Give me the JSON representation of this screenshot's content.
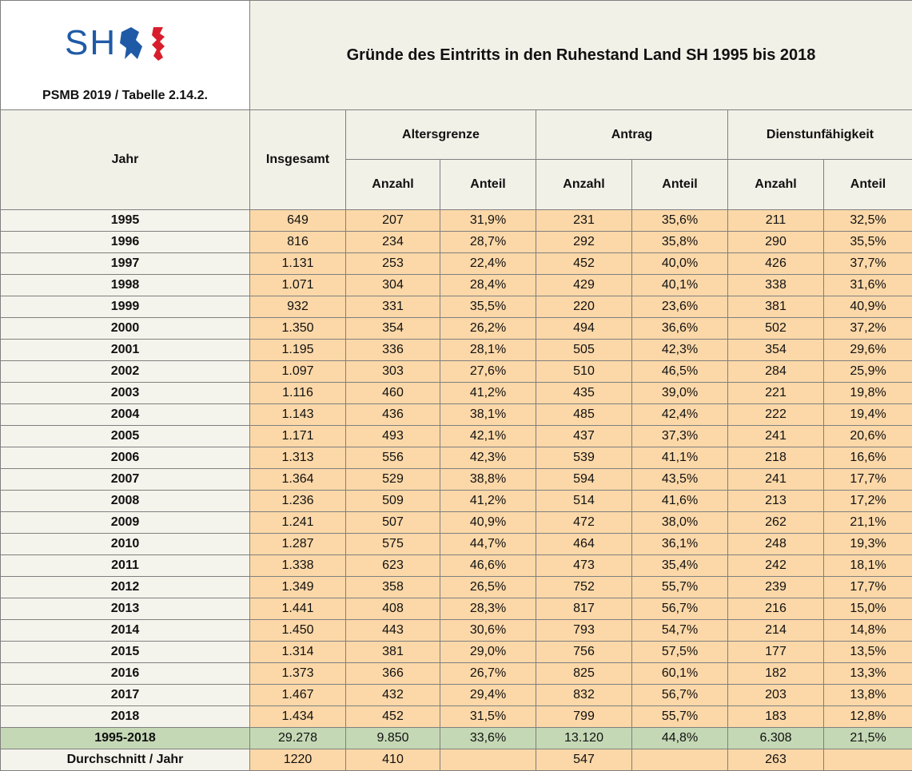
{
  "header": {
    "logo_text": "SH",
    "source": "PSMB 2019 / Tabelle 2.14.2.",
    "title": "Gründe des Eintritts in den Ruhestand Land SH 1995 bis 2018"
  },
  "table": {
    "columns": {
      "year": "Jahr",
      "total": "Insgesamt",
      "groups": [
        "Altersgrenze",
        "Antrag",
        "Dienstunfähigkeit"
      ],
      "sub": [
        "Anzahl",
        "Anteil",
        "Anzahl",
        "Anteil",
        "Anzahl",
        "Anteil"
      ]
    },
    "rows": [
      [
        "1995",
        "649",
        "207",
        "31,9%",
        "231",
        "35,6%",
        "211",
        "32,5%"
      ],
      [
        "1996",
        "816",
        "234",
        "28,7%",
        "292",
        "35,8%",
        "290",
        "35,5%"
      ],
      [
        "1997",
        "1.131",
        "253",
        "22,4%",
        "452",
        "40,0%",
        "426",
        "37,7%"
      ],
      [
        "1998",
        "1.071",
        "304",
        "28,4%",
        "429",
        "40,1%",
        "338",
        "31,6%"
      ],
      [
        "1999",
        "932",
        "331",
        "35,5%",
        "220",
        "23,6%",
        "381",
        "40,9%"
      ],
      [
        "2000",
        "1.350",
        "354",
        "26,2%",
        "494",
        "36,6%",
        "502",
        "37,2%"
      ],
      [
        "2001",
        "1.195",
        "336",
        "28,1%",
        "505",
        "42,3%",
        "354",
        "29,6%"
      ],
      [
        "2002",
        "1.097",
        "303",
        "27,6%",
        "510",
        "46,5%",
        "284",
        "25,9%"
      ],
      [
        "2003",
        "1.116",
        "460",
        "41,2%",
        "435",
        "39,0%",
        "221",
        "19,8%"
      ],
      [
        "2004",
        "1.143",
        "436",
        "38,1%",
        "485",
        "42,4%",
        "222",
        "19,4%"
      ],
      [
        "2005",
        "1.171",
        "493",
        "42,1%",
        "437",
        "37,3%",
        "241",
        "20,6%"
      ],
      [
        "2006",
        "1.313",
        "556",
        "42,3%",
        "539",
        "41,1%",
        "218",
        "16,6%"
      ],
      [
        "2007",
        "1.364",
        "529",
        "38,8%",
        "594",
        "43,5%",
        "241",
        "17,7%"
      ],
      [
        "2008",
        "1.236",
        "509",
        "41,2%",
        "514",
        "41,6%",
        "213",
        "17,2%"
      ],
      [
        "2009",
        "1.241",
        "507",
        "40,9%",
        "472",
        "38,0%",
        "262",
        "21,1%"
      ],
      [
        "2010",
        "1.287",
        "575",
        "44,7%",
        "464",
        "36,1%",
        "248",
        "19,3%"
      ],
      [
        "2011",
        "1.338",
        "623",
        "46,6%",
        "473",
        "35,4%",
        "242",
        "18,1%"
      ],
      [
        "2012",
        "1.349",
        "358",
        "26,5%",
        "752",
        "55,7%",
        "239",
        "17,7%"
      ],
      [
        "2013",
        "1.441",
        "408",
        "28,3%",
        "817",
        "56,7%",
        "216",
        "15,0%"
      ],
      [
        "2014",
        "1.450",
        "443",
        "30,6%",
        "793",
        "54,7%",
        "214",
        "14,8%"
      ],
      [
        "2015",
        "1.314",
        "381",
        "29,0%",
        "756",
        "57,5%",
        "177",
        "13,5%"
      ],
      [
        "2016",
        "1.373",
        "366",
        "26,7%",
        "825",
        "60,1%",
        "182",
        "13,3%"
      ],
      [
        "2017",
        "1.467",
        "432",
        "29,4%",
        "832",
        "56,7%",
        "203",
        "13,8%"
      ],
      [
        "2018",
        "1.434",
        "452",
        "31,5%",
        "799",
        "55,7%",
        "183",
        "12,8%"
      ]
    ],
    "total_row": [
      "1995-2018",
      "29.278",
      "9.850",
      "33,6%",
      "13.120",
      "44,8%",
      "6.308",
      "21,5%"
    ],
    "average_row": [
      "Durchschnitt / Jahr",
      "1220",
      "410",
      null,
      "547",
      null,
      "263",
      null
    ]
  }
}
